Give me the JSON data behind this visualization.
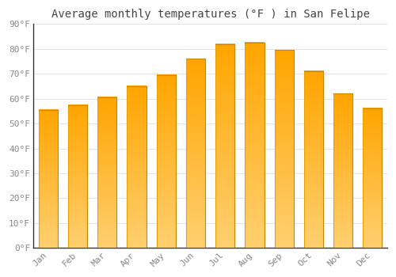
{
  "title": "Average monthly temperatures (°F ) in San Felipe",
  "months": [
    "Jan",
    "Feb",
    "Mar",
    "Apr",
    "May",
    "Jun",
    "Jul",
    "Aug",
    "Sep",
    "Oct",
    "Nov",
    "Dec"
  ],
  "values": [
    55.5,
    57.5,
    60.5,
    65,
    69.5,
    76,
    82,
    82.5,
    79.5,
    71,
    62,
    56
  ],
  "bar_color_top": "#FFB300",
  "bar_color_bottom": "#FFA000",
  "bar_gradient_light": "#FFD966",
  "background_color": "#FFFFFF",
  "grid_color": "#E0E0E0",
  "ylim": [
    0,
    90
  ],
  "yticks": [
    0,
    10,
    20,
    30,
    40,
    50,
    60,
    70,
    80,
    90
  ],
  "ytick_labels": [
    "0°F",
    "10°F",
    "20°F",
    "30°F",
    "40°F",
    "50°F",
    "60°F",
    "70°F",
    "80°F",
    "90°F"
  ],
  "title_fontsize": 10,
  "tick_fontsize": 8,
  "axis_color": "#888888",
  "tick_color": "#888888",
  "spine_color": "#333333"
}
